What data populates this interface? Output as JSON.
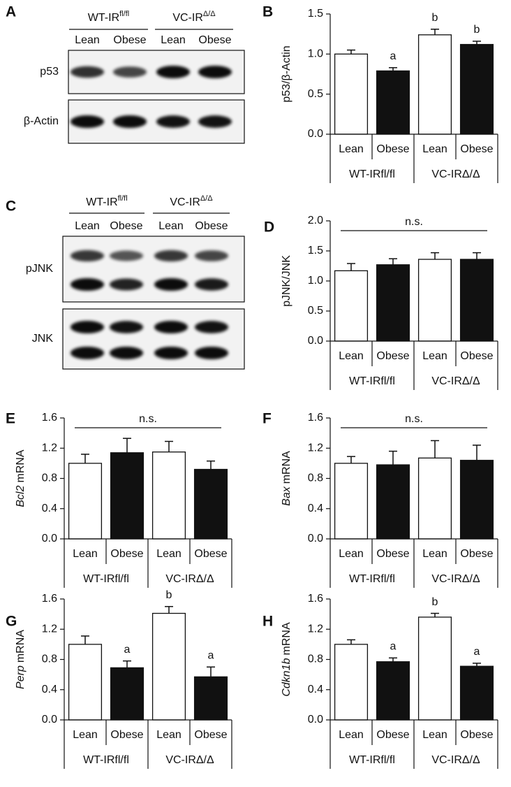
{
  "blots": [
    {
      "panel": "A",
      "groups": [
        {
          "base": "WT-IR",
          "sup": "fl/fl"
        },
        {
          "base": "VC-IR",
          "sup": "Δ/Δ"
        }
      ],
      "lanes": [
        "Lean",
        "Obese",
        "Lean",
        "Obese"
      ],
      "rows": [
        "p53",
        "β-Actin"
      ]
    },
    {
      "panel": "C",
      "groups": [
        {
          "base": "WT-IR",
          "sup": "fl/fl"
        },
        {
          "base": "VC-IR",
          "sup": "Δ/Δ"
        }
      ],
      "lanes": [
        "Lean",
        "Obese",
        "Lean",
        "Obese"
      ],
      "rows": [
        "pJNK",
        "JNK"
      ]
    }
  ],
  "chart_data": [
    {
      "type": "bar",
      "panel": "B",
      "ylabel": "p53/β-Actin",
      "categories": [
        "Lean",
        "Obese",
        "Lean",
        "Obese"
      ],
      "groups": [
        "WT-IRfl/fl",
        "VC-IRΔ/Δ"
      ],
      "values": [
        1.0,
        0.79,
        1.24,
        1.12
      ],
      "errors": [
        0.05,
        0.04,
        0.07,
        0.04
      ],
      "colors": [
        "#ffffff",
        "#111111",
        "#ffffff",
        "#111111"
      ],
      "annotations": [
        null,
        "a",
        "b",
        "b"
      ],
      "ylim": [
        0,
        1.5
      ],
      "yticks": [
        {
          "value": 0,
          "label": "0.0"
        },
        0.5,
        {
          "value": 1,
          "label": "1.0"
        },
        1.5
      ]
    },
    {
      "type": "bar",
      "panel": "D",
      "ylabel": "pJNK/JNK",
      "categories": [
        "Lean",
        "Obese",
        "Lean",
        "Obese"
      ],
      "groups": [
        "WT-IRfl/fl",
        "VC-IRΔ/Δ"
      ],
      "values": [
        1.17,
        1.27,
        1.36,
        1.36
      ],
      "errors": [
        0.12,
        0.1,
        0.11,
        0.11
      ],
      "colors": [
        "#ffffff",
        "#111111",
        "#ffffff",
        "#111111"
      ],
      "significance": "n.s.",
      "ylim": [
        0,
        2
      ],
      "yticks": [
        {
          "value": 0,
          "label": "0.0"
        },
        0.5,
        {
          "value": 1,
          "label": "1.0"
        },
        1.5,
        {
          "value": 2,
          "label": "2.0"
        }
      ]
    },
    {
      "type": "bar",
      "panel": "E",
      "ylabel": {
        "italic": "Bcl2",
        "text": "mRNA"
      },
      "categories": [
        "Lean",
        "Obese",
        "Lean",
        "Obese"
      ],
      "groups": [
        "WT-IRfl/fl",
        "VC-IRΔ/Δ"
      ],
      "values": [
        1.0,
        1.14,
        1.15,
        0.92
      ],
      "errors": [
        0.12,
        0.19,
        0.14,
        0.11
      ],
      "colors": [
        "#ffffff",
        "#111111",
        "#ffffff",
        "#111111"
      ],
      "significance": "n.s.",
      "ylim": [
        0,
        1.6
      ],
      "yticks": [
        {
          "value": 0,
          "label": "0.0"
        },
        0.4,
        0.8,
        1.2,
        1.6
      ]
    },
    {
      "type": "bar",
      "panel": "F",
      "ylabel": {
        "italic": "Bax",
        "text": "mRNA"
      },
      "categories": [
        "Lean",
        "Obese",
        "Lean",
        "Obese"
      ],
      "groups": [
        "WT-IRfl/fl",
        "VC-IRΔ/Δ"
      ],
      "values": [
        1.0,
        0.98,
        1.07,
        1.04
      ],
      "errors": [
        0.09,
        0.18,
        0.23,
        0.2
      ],
      "colors": [
        "#ffffff",
        "#111111",
        "#ffffff",
        "#111111"
      ],
      "significance": "n.s.",
      "ylim": [
        0,
        1.6
      ],
      "yticks": [
        {
          "value": 0,
          "label": "0.0"
        },
        0.4,
        0.8,
        1.2,
        1.6
      ]
    },
    {
      "type": "bar",
      "panel": "G",
      "ylabel": {
        "italic": "Perp",
        "text": "mRNA"
      },
      "categories": [
        "Lean",
        "Obese",
        "Lean",
        "Obese"
      ],
      "groups": [
        "WT-IRfl/fl",
        "VC-IRΔ/Δ"
      ],
      "values": [
        1.0,
        0.69,
        1.41,
        0.57
      ],
      "errors": [
        0.11,
        0.09,
        0.09,
        0.13
      ],
      "colors": [
        "#ffffff",
        "#111111",
        "#ffffff",
        "#111111"
      ],
      "annotations": [
        null,
        "a",
        "b",
        "a"
      ],
      "ylim": [
        0,
        1.6
      ],
      "yticks": [
        {
          "value": 0,
          "label": "0.0"
        },
        0.4,
        0.8,
        1.2,
        1.6
      ]
    },
    {
      "type": "bar",
      "panel": "H",
      "ylabel": {
        "italic": "Cdkn1b",
        "text": "mRNA"
      },
      "categories": [
        "Lean",
        "Obese",
        "Lean",
        "Obese"
      ],
      "groups": [
        "WT-IRfl/fl",
        "VC-IRΔ/Δ"
      ],
      "values": [
        1.0,
        0.77,
        1.36,
        0.71
      ],
      "errors": [
        0.06,
        0.05,
        0.05,
        0.04
      ],
      "colors": [
        "#ffffff",
        "#111111",
        "#ffffff",
        "#111111"
      ],
      "annotations": [
        null,
        "a",
        "b",
        "a"
      ],
      "ylim": [
        0,
        1.6
      ],
      "yticks": [
        {
          "value": 0,
          "label": "0.0"
        },
        0.4,
        0.8,
        1.2,
        1.6
      ]
    }
  ]
}
